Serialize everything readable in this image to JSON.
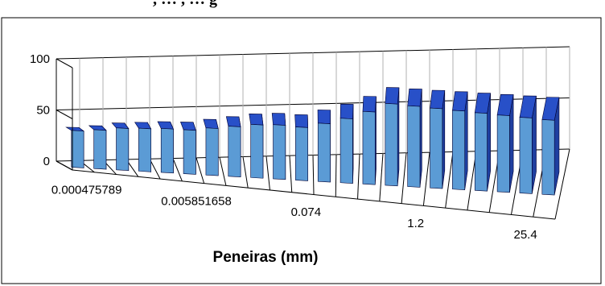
{
  "header_fragment": ", … , … g",
  "chart_data": {
    "type": "bar",
    "xlabel": "Peneiras (mm)",
    "ylabel": "",
    "ylim": [
      0,
      100
    ],
    "yticks": [
      "0",
      "50",
      "100"
    ],
    "grid": true,
    "tick_labels": [
      "0.000475789",
      "0.005851658",
      "0.074",
      "1.2",
      "25.4"
    ],
    "values": [
      36,
      38,
      41,
      42,
      43,
      43,
      46,
      49,
      52,
      53,
      52,
      57,
      63,
      71,
      80,
      79,
      78,
      77,
      76,
      75,
      74,
      73
    ],
    "bar_color": "#5b9bd5"
  }
}
